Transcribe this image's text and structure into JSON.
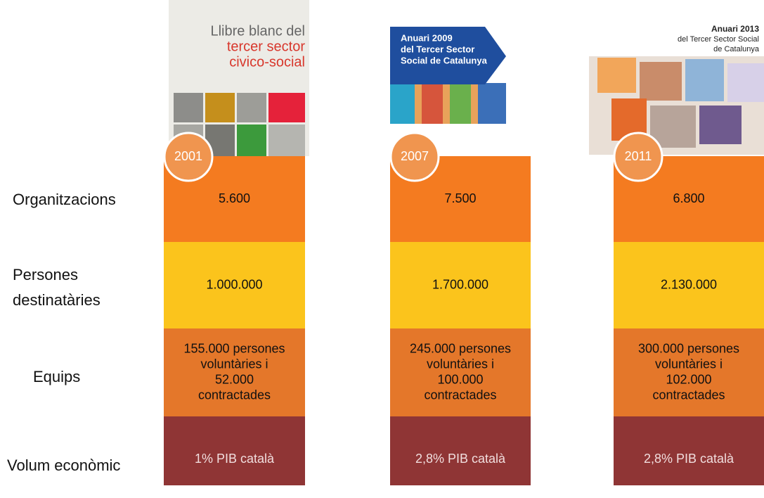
{
  "row_labels": [
    "Organitzacions",
    [
      "Persones",
      "destinatàries"
    ],
    "Equips",
    "Volum econòmic"
  ],
  "columns": [
    {
      "cover": [
        "Llibre blanc del",
        "tercer sector",
        "civico-social"
      ],
      "year": "2001",
      "cells": [
        "5.600",
        "1.000.000",
        [
          "155.000 persones",
          "voluntàries i",
          "52.000",
          "contractades"
        ],
        "1% PIB català"
      ]
    },
    {
      "cover": [
        "Anuari 2009",
        "del Tercer Sector",
        "Social de Catalunya"
      ],
      "year": "2007",
      "cells": [
        "7.500",
        "1.700.000",
        [
          "245.000 persones",
          "voluntàries i",
          "100.000",
          "contractades"
        ],
        "2,8% PIB català"
      ]
    },
    {
      "cover": [
        "Anuari 2013",
        "del Tercer Sector Social",
        "de Catalunya"
      ],
      "year": "2011",
      "cells": [
        "6.800",
        "2.130.000",
        [
          "300.000 persones",
          "voluntàries i",
          "102.000",
          "contractades"
        ],
        "2,8% PIB català"
      ]
    }
  ]
}
